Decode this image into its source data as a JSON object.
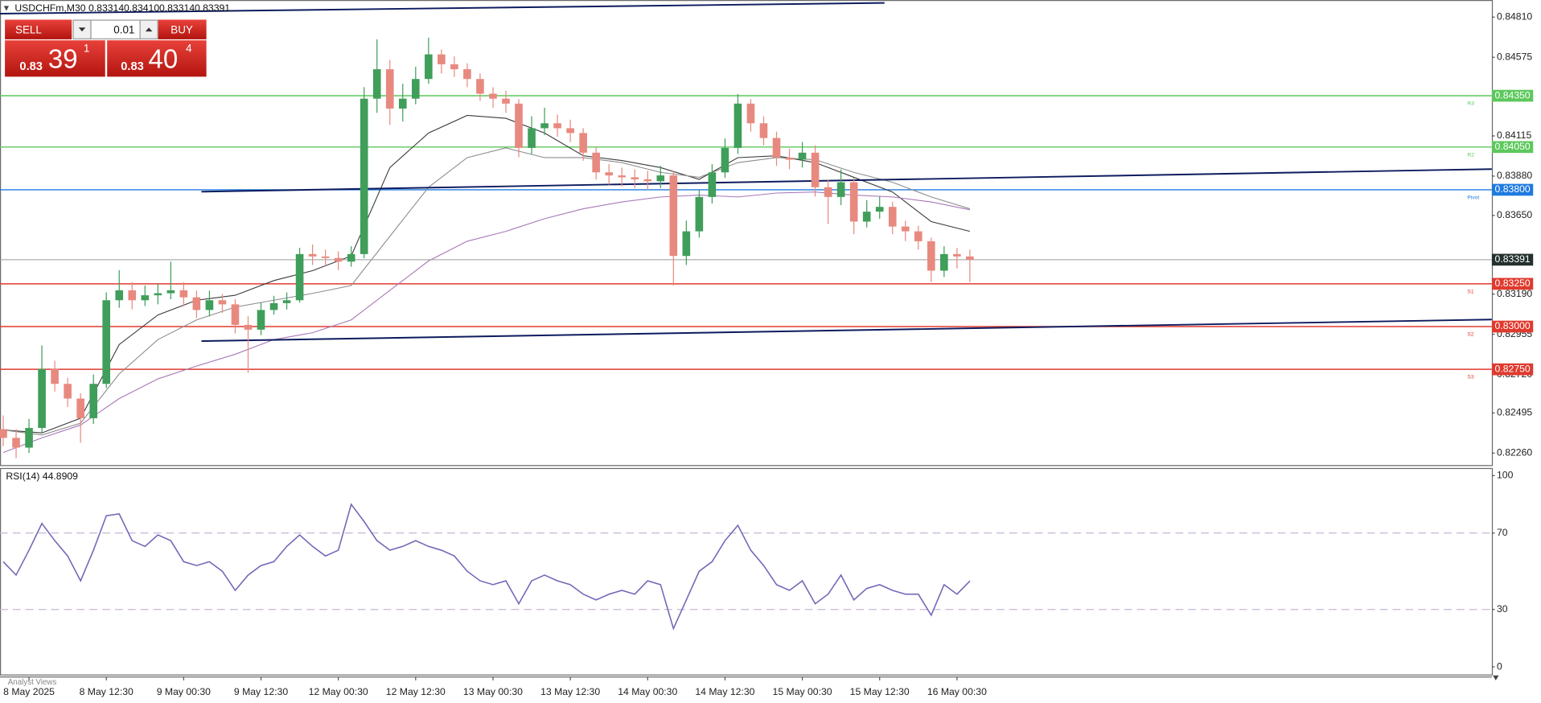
{
  "chart_data": [
    {
      "type": "candlestick",
      "title": "USDCHFm,M30",
      "quote": [
        "0.83314",
        "0.83410",
        "0.83314",
        "0.83391"
      ],
      "xlim": [
        -1,
        462
      ],
      "ylim": [
        0.8219,
        0.8491
      ],
      "up_color": "#3f9e5a",
      "down_color": "#e8897f",
      "x": [
        0,
        4,
        8,
        12,
        16,
        20,
        24,
        28,
        32,
        36,
        40,
        44,
        48,
        52,
        56,
        60,
        64,
        68,
        72,
        76,
        80,
        84,
        88,
        92,
        96,
        100,
        104,
        108,
        112,
        116,
        120,
        124,
        128,
        132,
        136,
        140,
        144,
        148,
        152,
        156,
        160,
        164,
        168,
        172,
        176,
        180,
        184,
        188,
        192,
        196,
        200,
        204,
        208,
        212,
        216,
        220,
        224,
        228,
        232,
        236,
        240,
        244,
        248,
        252,
        256,
        260,
        264,
        268,
        272,
        276,
        280,
        284,
        288,
        292,
        296,
        300
      ],
      "ohlc": [
        [
          0.824,
          0.8248,
          0.823,
          0.82349
        ],
        [
          0.82349,
          0.824,
          0.8223,
          0.82292
        ],
        [
          0.82292,
          0.8246,
          0.8226,
          0.82407
        ],
        [
          0.82407,
          0.8289,
          0.8238,
          0.82752
        ],
        [
          0.82752,
          0.828,
          0.8262,
          0.82665
        ],
        [
          0.82665,
          0.827,
          0.8253,
          0.82579
        ],
        [
          0.82579,
          0.8261,
          0.8232,
          0.82464
        ],
        [
          0.82464,
          0.8272,
          0.8243,
          0.82665
        ],
        [
          0.82665,
          0.832,
          0.8264,
          0.83154
        ],
        [
          0.83154,
          0.8333,
          0.8311,
          0.83212
        ],
        [
          0.83212,
          0.8326,
          0.831,
          0.83154
        ],
        [
          0.83154,
          0.8324,
          0.8312,
          0.83183
        ],
        [
          0.83183,
          0.8325,
          0.8313,
          0.83195
        ],
        [
          0.83195,
          0.8338,
          0.8316,
          0.83212
        ],
        [
          0.83212,
          0.8326,
          0.8312,
          0.83171
        ],
        [
          0.83171,
          0.8321,
          0.8305,
          0.83097
        ],
        [
          0.83097,
          0.8321,
          0.8306,
          0.83154
        ],
        [
          0.83154,
          0.8319,
          0.8308,
          0.8313
        ],
        [
          0.8313,
          0.8316,
          0.8296,
          0.8301
        ],
        [
          0.8301,
          0.8306,
          0.8273,
          0.82982
        ],
        [
          0.82982,
          0.8314,
          0.8295,
          0.83097
        ],
        [
          0.83097,
          0.8318,
          0.8307,
          0.83137
        ],
        [
          0.83137,
          0.832,
          0.831,
          0.83154
        ],
        [
          0.83154,
          0.8346,
          0.8314,
          0.83424
        ],
        [
          0.83424,
          0.8348,
          0.8336,
          0.8341
        ],
        [
          0.8341,
          0.8345,
          0.8335,
          0.83401
        ],
        [
          0.83401,
          0.8344,
          0.8333,
          0.8338
        ],
        [
          0.8338,
          0.8347,
          0.8335,
          0.83424
        ],
        [
          0.83424,
          0.844,
          0.834,
          0.84333
        ],
        [
          0.84333,
          0.8468,
          0.8425,
          0.84505
        ],
        [
          0.84505,
          0.8456,
          0.8418,
          0.84275
        ],
        [
          0.84275,
          0.8442,
          0.842,
          0.84333
        ],
        [
          0.84333,
          0.8452,
          0.843,
          0.84448
        ],
        [
          0.84448,
          0.8469,
          0.8442,
          0.84592
        ],
        [
          0.84592,
          0.8462,
          0.8448,
          0.84534
        ],
        [
          0.84534,
          0.8458,
          0.8446,
          0.84505
        ],
        [
          0.84505,
          0.8454,
          0.844,
          0.84448
        ],
        [
          0.84448,
          0.8448,
          0.8432,
          0.84362
        ],
        [
          0.84362,
          0.844,
          0.8428,
          0.84333
        ],
        [
          0.84333,
          0.8438,
          0.8425,
          0.84304
        ],
        [
          0.84304,
          0.8433,
          0.8399,
          0.84045
        ],
        [
          0.84045,
          0.8423,
          0.8401,
          0.8416
        ],
        [
          0.8416,
          0.8428,
          0.8412,
          0.84189
        ],
        [
          0.84189,
          0.8424,
          0.8411,
          0.8416
        ],
        [
          0.8416,
          0.8421,
          0.8408,
          0.84132
        ],
        [
          0.84132,
          0.8416,
          0.8397,
          0.84017
        ],
        [
          0.84017,
          0.8405,
          0.8386,
          0.83902
        ],
        [
          0.83902,
          0.8395,
          0.8383,
          0.83884
        ],
        [
          0.83884,
          0.8393,
          0.8382,
          0.83873
        ],
        [
          0.83873,
          0.8392,
          0.8381,
          0.83861
        ],
        [
          0.83861,
          0.8391,
          0.838,
          0.8385
        ],
        [
          0.8385,
          0.8394,
          0.8381,
          0.83884
        ],
        [
          0.83884,
          0.8391,
          0.8324,
          0.83413
        ],
        [
          0.83413,
          0.8362,
          0.8336,
          0.83557
        ],
        [
          0.83557,
          0.838,
          0.8352,
          0.83758
        ],
        [
          0.83758,
          0.8395,
          0.8372,
          0.83902
        ],
        [
          0.83902,
          0.841,
          0.8387,
          0.84045
        ],
        [
          0.84045,
          0.8436,
          0.8401,
          0.84304
        ],
        [
          0.84304,
          0.8433,
          0.8414,
          0.84189
        ],
        [
          0.84189,
          0.8423,
          0.8406,
          0.84103
        ],
        [
          0.84103,
          0.8414,
          0.8394,
          0.83988
        ],
        [
          0.83988,
          0.8404,
          0.8392,
          0.83976
        ],
        [
          0.83976,
          0.8408,
          0.8393,
          0.84017
        ],
        [
          0.84017,
          0.8406,
          0.8376,
          0.83815
        ],
        [
          0.83815,
          0.8386,
          0.836,
          0.83758
        ],
        [
          0.83758,
          0.8392,
          0.8371,
          0.83844
        ],
        [
          0.83844,
          0.8387,
          0.8354,
          0.83614
        ],
        [
          0.83614,
          0.8374,
          0.8358,
          0.83672
        ],
        [
          0.83672,
          0.8376,
          0.8363,
          0.837
        ],
        [
          0.837,
          0.8373,
          0.8354,
          0.83585
        ],
        [
          0.83585,
          0.8362,
          0.835,
          0.83557
        ],
        [
          0.83557,
          0.8359,
          0.8345,
          0.83499
        ],
        [
          0.83499,
          0.8352,
          0.8326,
          0.83327
        ],
        [
          0.83327,
          0.8347,
          0.8329,
          0.83424
        ],
        [
          0.83424,
          0.8346,
          0.8334,
          0.8341
        ],
        [
          0.8341,
          0.8345,
          0.8326,
          0.83391
        ]
      ],
      "ma_x": [
        0,
        12,
        24,
        36,
        48,
        60,
        72,
        84,
        96,
        108,
        120,
        132,
        144,
        156,
        168,
        180,
        192,
        204,
        216,
        228,
        240,
        252,
        264,
        276,
        288,
        300
      ],
      "ma": [
        {
          "color": "#3a3a3a",
          "values": [
            0.82395,
            0.82378,
            0.82464,
            0.82895,
            0.83068,
            0.83154,
            0.83183,
            0.83269,
            0.83327,
            0.83413,
            0.8393,
            0.84132,
            0.84235,
            0.84218,
            0.84132,
            0.83999,
            0.83971,
            0.8393,
            0.83861,
            0.83988,
            0.83999,
            0.83959,
            0.83873,
            0.83787,
            0.83614,
            0.83557
          ]
        },
        {
          "color": "#8e8e8e",
          "values": [
            0.82395,
            0.82366,
            0.82435,
            0.82723,
            0.82924,
            0.83039,
            0.83114,
            0.83154,
            0.83194,
            0.8324,
            0.83528,
            0.83815,
            0.83988,
            0.84045,
            0.83988,
            0.83988,
            0.83959,
            0.83902,
            0.83873,
            0.83959,
            0.83988,
            0.83976,
            0.83902,
            0.83844,
            0.83758,
            0.83689
          ]
        },
        {
          "color": "#a878b8",
          "values": [
            0.82263,
            0.82349,
            0.82424,
            0.82579,
            0.82694,
            0.82769,
            0.82838,
            0.82924,
            0.82964,
            0.83039,
            0.83212,
            0.83384,
            0.83499,
            0.83557,
            0.83631,
            0.83689,
            0.83729,
            0.83758,
            0.83769,
            0.83758,
            0.83781,
            0.83787,
            0.83769,
            0.83758,
            0.83729,
            0.83683
          ]
        }
      ],
      "trendlines": [
        {
          "color": "#0d1b5e",
          "x": [
            -1,
            273.5
          ],
          "values": [
            0.8483,
            0.84893
          ]
        },
        {
          "color": "#0d1b5e",
          "x": [
            61.5,
            462
          ],
          "values": [
            0.83789,
            0.83921
          ]
        },
        {
          "color": "#0d1b5e",
          "x": [
            61.5,
            462
          ],
          "values": [
            0.82915,
            0.83041
          ]
        }
      ],
      "pivot_levels": [
        {
          "name": "R3",
          "value": 0.8435,
          "label": "0.84350",
          "color": "#5cc85c"
        },
        {
          "name": "R2",
          "value": 0.8405,
          "label": "0.84050",
          "color": "#5cc85c"
        },
        {
          "name": "Pivot",
          "value": 0.838,
          "label": "0.83800",
          "color": "#1f7ae0"
        },
        {
          "name": "S1",
          "value": 0.8325,
          "label": "0.83250",
          "color": "#e03a2e"
        },
        {
          "name": "S2",
          "value": 0.83,
          "label": "0.83000",
          "color": "#e03a2e"
        },
        {
          "name": "S3",
          "value": 0.8275,
          "label": "0.82750",
          "color": "#e03a2e"
        }
      ],
      "last": 0.83391,
      "last_color": "#24302f",
      "yticks": [
        {
          "value": 0.8481,
          "label": "0.84810"
        },
        0.84575,
        0.84115,
        {
          "value": 0.8388,
          "label": "0.83880"
        },
        {
          "value": 0.8365,
          "label": "0.83650"
        },
        {
          "value": 0.8319,
          "label": "0.83190"
        },
        0.82955,
        {
          "value": 0.8272,
          "label": "0.82720"
        },
        0.82495,
        {
          "value": 0.8226,
          "label": "0.82260"
        }
      ],
      "xticks": [
        {
          "value": 8,
          "label": "8 May 2025"
        },
        {
          "value": 32,
          "label": "8 May 12:30"
        },
        {
          "value": 56,
          "label": "9 May 00:30"
        },
        {
          "value": 80,
          "label": "9 May 12:30"
        },
        {
          "value": 104,
          "label": "12 May 00:30"
        },
        {
          "value": 128,
          "label": "12 May 12:30"
        },
        {
          "value": 152,
          "label": "13 May 00:30"
        },
        {
          "value": 176,
          "label": "13 May 12:30"
        },
        {
          "value": 200,
          "label": "14 May 00:30"
        },
        {
          "value": 224,
          "label": "14 May 12:30"
        },
        {
          "value": 248,
          "label": "15 May 00:30"
        },
        {
          "value": 272,
          "label": "15 May 12:30"
        },
        {
          "value": 296,
          "label": "16 May 00:30"
        }
      ]
    },
    {
      "type": "line",
      "title": "RSI(14) 44.8909",
      "color": "#7368b8",
      "xlim": [
        -1,
        462
      ],
      "ylim": [
        -4,
        104
      ],
      "yticks": [
        0,
        30,
        70,
        100
      ],
      "levels": [
        30,
        70
      ],
      "x": [
        0,
        4,
        8,
        12,
        16,
        20,
        24,
        28,
        32,
        36,
        40,
        44,
        48,
        52,
        56,
        60,
        64,
        68,
        72,
        76,
        80,
        84,
        88,
        92,
        96,
        100,
        104,
        108,
        112,
        116,
        120,
        124,
        128,
        132,
        136,
        140,
        144,
        148,
        152,
        156,
        160,
        164,
        168,
        172,
        176,
        180,
        184,
        188,
        192,
        196,
        200,
        204,
        208,
        212,
        216,
        220,
        224,
        228,
        232,
        236,
        240,
        244,
        248,
        252,
        256,
        260,
        264,
        268,
        272,
        276,
        280,
        284,
        288,
        292,
        296,
        300
      ],
      "values": [
        55,
        48,
        61,
        75,
        66,
        58,
        45,
        61,
        79,
        80,
        66,
        63,
        69,
        66,
        55,
        53,
        55,
        50,
        40,
        48,
        53,
        55,
        63,
        69,
        63,
        58,
        61,
        85,
        76,
        66,
        61,
        63,
        66,
        63,
        61,
        58,
        50,
        45,
        43,
        45,
        33,
        45,
        48,
        45,
        43,
        38,
        35,
        38,
        40,
        38,
        45,
        43,
        20,
        35,
        50,
        55,
        66,
        74,
        61,
        53,
        43,
        40,
        45,
        33,
        38,
        48,
        35,
        41,
        43,
        40,
        38,
        38,
        27,
        43,
        38,
        44.89
      ]
    }
  ],
  "trade_panel": {
    "sell": "SELL",
    "buy": "BUY",
    "volume": "0.01",
    "bid": {
      "big_figure": "0.83",
      "pips": "39",
      "fraction": "1"
    },
    "ask": {
      "big_figure": "0.83",
      "pips": "40",
      "fraction": "4"
    }
  },
  "footer": {
    "tab": "Analyst Views"
  }
}
